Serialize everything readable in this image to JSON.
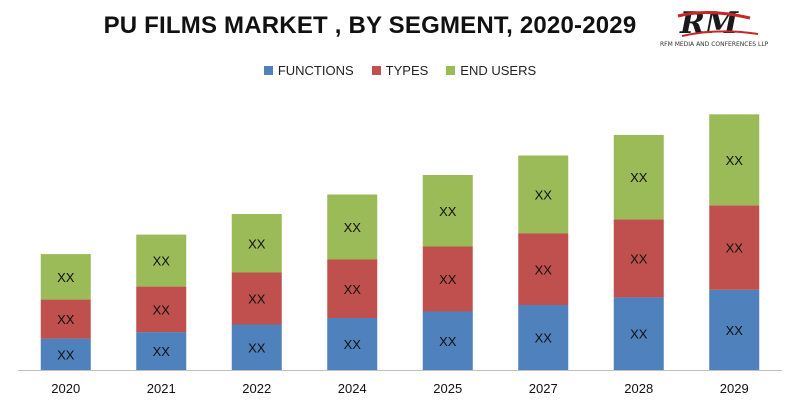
{
  "logo": {
    "letters": "RM",
    "tagline": "RFM MEDIA AND CONFERENCES LLP"
  },
  "chart_data": {
    "type": "bar",
    "stacked": true,
    "title": "PU FILMS MARKET , BY SEGMENT, 2020-2029",
    "xlabel": "",
    "ylabel": "",
    "legend_position": "top",
    "grid": false,
    "categories": [
      "2020",
      "2021",
      "2022",
      "2024",
      "2025",
      "2027",
      "2028",
      "2029"
    ],
    "series": [
      {
        "name": "FUNCTIONS",
        "color": "#4f81bd",
        "values": [
          29,
          35,
          42,
          48,
          54,
          60,
          67,
          74
        ],
        "labels": [
          "XX",
          "XX",
          "XX",
          "XX",
          "XX",
          "XX",
          "XX",
          "XX"
        ]
      },
      {
        "name": "TYPES",
        "color": "#c0504d",
        "values": [
          36,
          42,
          48,
          54,
          60,
          66,
          72,
          78
        ],
        "labels": [
          "XX",
          "XX",
          "XX",
          "XX",
          "XX",
          "XX",
          "XX",
          "XX"
        ]
      },
      {
        "name": "END USERS",
        "color": "#9bbb59",
        "values": [
          42,
          48,
          54,
          60,
          66,
          72,
          78,
          84
        ],
        "labels": [
          "XX",
          "XX",
          "XX",
          "XX",
          "XX",
          "XX",
          "XX",
          "XX"
        ]
      }
    ],
    "ylim": [
      0,
      240
    ]
  }
}
